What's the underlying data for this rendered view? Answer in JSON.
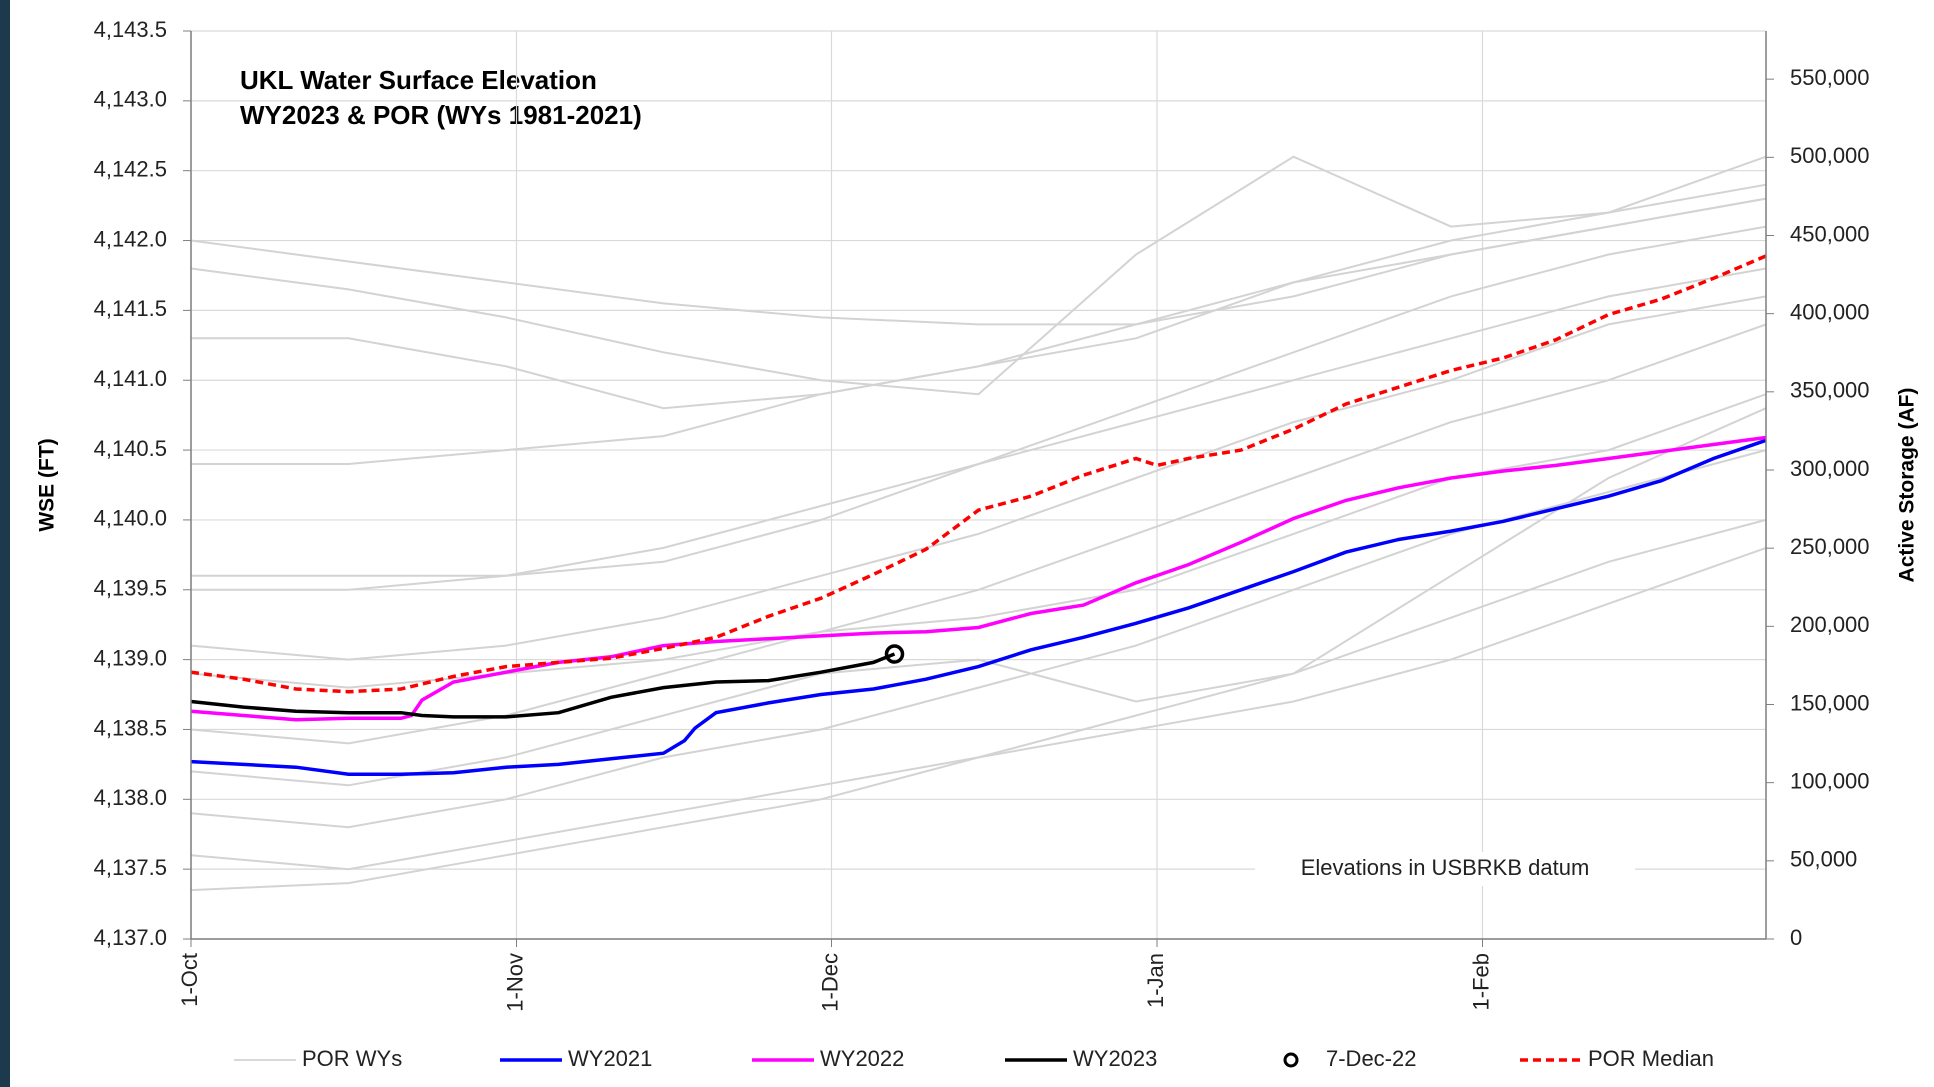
{
  "chart_data": {
    "type": "line",
    "title": [
      "UKL Water Surface Elevation",
      "WY2023 & POR (WYs 1981-2021)"
    ],
    "y_label": "WSE (FT)",
    "y2_label": "Active Storage (AF)",
    "annotation": "Elevations in USBRKB datum",
    "grid": true,
    "xlim": [
      0,
      150
    ],
    "xticks": [
      {
        "value": 0,
        "label": "1-Oct"
      },
      {
        "value": 31,
        "label": "1-Nov"
      },
      {
        "value": 61,
        "label": "1-Dec"
      },
      {
        "value": 92,
        "label": "1-Jan"
      },
      {
        "value": 123,
        "label": "1-Feb"
      }
    ],
    "ylim": [
      4137.0,
      4143.5
    ],
    "yticks": [
      {
        "value": 4137.0,
        "label": "4,137.0"
      },
      {
        "value": 4137.5,
        "label": "4,137.5"
      },
      {
        "value": 4138.0,
        "label": "4,138.0"
      },
      {
        "value": 4138.5,
        "label": "4,138.5"
      },
      {
        "value": 4139.0,
        "label": "4,139.0"
      },
      {
        "value": 4139.5,
        "label": "4,139.5"
      },
      {
        "value": 4140.0,
        "label": "4,140.0"
      },
      {
        "value": 4140.5,
        "label": "4,140.5"
      },
      {
        "value": 4141.0,
        "label": "4,141.0"
      },
      {
        "value": 4141.5,
        "label": "4,141.5"
      },
      {
        "value": 4142.0,
        "label": "4,142.0"
      },
      {
        "value": 4142.5,
        "label": "4,142.5"
      },
      {
        "value": 4143.0,
        "label": "4,143.0"
      },
      {
        "value": 4143.5,
        "label": "4,143.5"
      }
    ],
    "y2lim": [
      0,
      580800
    ],
    "y2ticks": [
      0,
      {
        "value": 50000,
        "label": "50,000"
      },
      {
        "value": 100000,
        "label": "100,000"
      },
      {
        "value": 150000,
        "label": "150,000"
      },
      {
        "value": 200000,
        "label": "200,000"
      },
      {
        "value": 250000,
        "label": "250,000"
      },
      {
        "value": 300000,
        "label": "300,000"
      },
      {
        "value": 350000,
        "label": "350,000"
      },
      {
        "value": 400000,
        "label": "400,000"
      },
      {
        "value": 450000,
        "label": "450,000"
      },
      {
        "value": 500000,
        "label": "500,000"
      },
      {
        "value": 550000,
        "label": "550,000"
      }
    ],
    "por_wys": {
      "name": "POR WYs",
      "color": "#d3d3d3",
      "x": [
        0,
        15,
        30,
        45,
        60,
        75,
        90,
        105,
        120,
        135,
        150
      ],
      "lines": [
        [
          4142.0,
          4141.85,
          4141.7,
          4141.55,
          4141.45,
          4141.4,
          4141.4,
          4141.6,
          4141.9,
          4142.1,
          4142.3
        ],
        [
          4141.8,
          4141.65,
          4141.45,
          4141.2,
          4141.0,
          4140.9,
          4141.9,
          4142.6,
          4142.1,
          4142.2,
          4142.4
        ],
        [
          4141.3,
          4141.3,
          4141.1,
          4140.8,
          4140.9,
          4141.1,
          4141.3,
          4141.7,
          4142.0,
          4142.2,
          4142.6
        ],
        [
          4140.4,
          4140.4,
          4140.5,
          4140.6,
          4140.9,
          4141.1,
          4141.4,
          4141.7,
          4141.9,
          4142.1,
          4142.3
        ],
        [
          4139.6,
          4139.6,
          4139.6,
          4139.7,
          4140.0,
          4140.4,
          4140.8,
          4141.2,
          4141.6,
          4141.9,
          4142.1
        ],
        [
          4139.5,
          4139.5,
          4139.6,
          4139.8,
          4140.1,
          4140.4,
          4140.7,
          4141.0,
          4141.3,
          4141.6,
          4141.8
        ],
        [
          4139.1,
          4139.0,
          4139.1,
          4139.3,
          4139.6,
          4139.9,
          4140.3,
          4140.7,
          4141.0,
          4141.4,
          4141.6
        ],
        [
          4138.9,
          4138.8,
          4138.9,
          4139.0,
          4139.2,
          4139.5,
          4139.9,
          4140.3,
          4140.7,
          4141.0,
          4141.4
        ],
        [
          4138.5,
          4138.4,
          4138.6,
          4138.9,
          4139.2,
          4139.3,
          4139.5,
          4139.9,
          4140.3,
          4140.5,
          4140.9
        ],
        [
          4138.2,
          4138.1,
          4138.3,
          4138.6,
          4138.9,
          4139.0,
          4138.7,
          4138.9,
          4139.6,
          4140.3,
          4140.8
        ],
        [
          4137.9,
          4137.8,
          4138.0,
          4138.3,
          4138.5,
          4138.8,
          4139.1,
          4139.5,
          4139.9,
          4140.2,
          4140.5
        ],
        [
          4137.6,
          4137.5,
          4137.7,
          4137.9,
          4138.1,
          4138.3,
          4138.6,
          4138.9,
          4139.3,
          4139.7,
          4140.0
        ],
        [
          4137.35,
          4137.4,
          4137.6,
          4137.8,
          4138.0,
          4138.3,
          4138.5,
          4138.7,
          4139.0,
          4139.4,
          4139.8
        ]
      ]
    },
    "series": [
      {
        "name": "WY2021",
        "color": "#0000ff",
        "style": "solid",
        "x": [
          0,
          10,
          15,
          20,
          25,
          30,
          35,
          40,
          45,
          47,
          48,
          50,
          55,
          60,
          65,
          70,
          75,
          80,
          85,
          90,
          95,
          100,
          105,
          110,
          115,
          120,
          125,
          130,
          135,
          140,
          145,
          150
        ],
        "values": [
          4138.27,
          4138.23,
          4138.18,
          4138.18,
          4138.19,
          4138.23,
          4138.25,
          4138.29,
          4138.33,
          4138.42,
          4138.51,
          4138.62,
          4138.69,
          4138.75,
          4138.79,
          4138.86,
          4138.95,
          4139.07,
          4139.16,
          4139.26,
          4139.37,
          4139.5,
          4139.63,
          4139.77,
          4139.86,
          4139.92,
          4139.99,
          4140.08,
          4140.17,
          4140.28,
          4140.44,
          4140.57
        ]
      },
      {
        "name": "WY2022",
        "color": "#ff00ff",
        "style": "solid",
        "x": [
          0,
          5,
          10,
          15,
          20,
          21,
          22,
          25,
          30,
          35,
          40,
          45,
          50,
          55,
          60,
          65,
          70,
          75,
          80,
          85,
          90,
          95,
          100,
          105,
          110,
          115,
          120,
          125,
          130,
          135,
          140,
          145,
          150
        ],
        "values": [
          4138.63,
          4138.6,
          4138.57,
          4138.58,
          4138.58,
          4138.6,
          4138.71,
          4138.84,
          4138.91,
          4138.98,
          4139.02,
          4139.1,
          4139.13,
          4139.15,
          4139.17,
          4139.19,
          4139.2,
          4139.23,
          4139.33,
          4139.39,
          4139.55,
          4139.68,
          4139.84,
          4140.01,
          4140.14,
          4140.23,
          4140.3,
          4140.35,
          4140.39,
          4140.44,
          4140.49,
          4140.54,
          4140.59
        ]
      },
      {
        "name": "WY2023",
        "color": "#000000",
        "style": "solid",
        "x": [
          0,
          5,
          10,
          15,
          20,
          22,
          25,
          30,
          35,
          40,
          45,
          50,
          55,
          60,
          65,
          67
        ],
        "values": [
          4138.7,
          4138.66,
          4138.63,
          4138.62,
          4138.62,
          4138.6,
          4138.59,
          4138.59,
          4138.62,
          4138.73,
          4138.8,
          4138.84,
          4138.85,
          4138.91,
          4138.98,
          4139.04
        ]
      },
      {
        "name": "7-Dec-22",
        "color": "#000000",
        "style": "marker",
        "x": [
          67
        ],
        "values": [
          4139.04
        ]
      },
      {
        "name": "POR Median",
        "color": "#ff0000",
        "style": "dashed",
        "x": [
          0,
          5,
          10,
          15,
          20,
          25,
          30,
          35,
          40,
          45,
          50,
          55,
          60,
          65,
          70,
          75,
          80,
          85,
          90,
          92,
          95,
          100,
          105,
          110,
          115,
          120,
          125,
          130,
          135,
          140,
          145,
          150
        ],
        "values": [
          4138.91,
          4138.86,
          4138.79,
          4138.77,
          4138.79,
          4138.88,
          4138.95,
          4138.98,
          4139.01,
          4139.08,
          4139.16,
          4139.31,
          4139.44,
          4139.61,
          4139.79,
          4140.07,
          4140.17,
          4140.32,
          4140.44,
          4140.39,
          4140.44,
          4140.5,
          4140.65,
          4140.83,
          4140.95,
          4141.07,
          4141.16,
          4141.29,
          4141.47,
          4141.58,
          4141.73,
          4141.89
        ]
      }
    ]
  }
}
